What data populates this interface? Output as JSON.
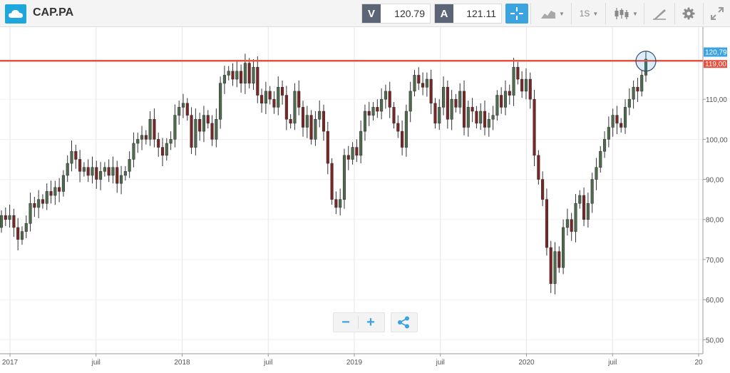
{
  "header": {
    "logo_icon": "cloud-logo-icon",
    "symbol": "CAP.PA",
    "sell": {
      "tag": "V",
      "price": "120.79"
    },
    "buy": {
      "tag": "A",
      "price": "121.11"
    },
    "tools": {
      "crosshair_icon": "crosshair-icon",
      "chart_type_icon": "area-chart-icon",
      "timeframe": "1S",
      "candles_icon": "candlestick-icon",
      "draw_icon": "pencil-ruler-icon",
      "settings_icon": "gear-icon",
      "fullscreen_icon": "expand-icon"
    }
  },
  "controls": {
    "zoom_out": "−",
    "zoom_in": "+",
    "share_icon": "share-icon"
  },
  "colors": {
    "accent": "#3aa3e0",
    "up": "#4e6b4e",
    "down": "#7a2626",
    "line": "#e8503f"
  },
  "chart_data": {
    "type": "candlestick",
    "symbol": "CAP.PA",
    "interval": "1S",
    "y_ticks": [
      "50,00",
      "60,00",
      "70,00",
      "80,00",
      "90,00",
      "100,00",
      "110,00"
    ],
    "ylim": [
      46.5,
      128
    ],
    "x_ticks": [
      {
        "label": "2017",
        "t": 0
      },
      {
        "label": "juil",
        "t": 0.5
      },
      {
        "label": "2018",
        "t": 1
      },
      {
        "label": "juil",
        "t": 1.5
      },
      {
        "label": "2019",
        "t": 2
      },
      {
        "label": "juil",
        "t": 2.5
      },
      {
        "label": "2020",
        "t": 3
      },
      {
        "label": "juil",
        "t": 3.5
      },
      {
        "label": "20",
        "t": 4
      }
    ],
    "current_price": 120.79,
    "current_price_label": "120,79",
    "second_price_label": "119,00",
    "price_line": 119.6,
    "series": [
      [
        78,
        81
      ],
      [
        81,
        80
      ],
      [
        80,
        81
      ],
      [
        81,
        78
      ],
      [
        78,
        75
      ],
      [
        75,
        77
      ],
      [
        77,
        79
      ],
      [
        79,
        84
      ],
      [
        84,
        83
      ],
      [
        83,
        85
      ],
      [
        85,
        84
      ],
      [
        84,
        87
      ],
      [
        87,
        86
      ],
      [
        86,
        88
      ],
      [
        88,
        87
      ],
      [
        87,
        91
      ],
      [
        91,
        94
      ],
      [
        94,
        97
      ],
      [
        97,
        95
      ],
      [
        95,
        92
      ],
      [
        92,
        93
      ],
      [
        93,
        91
      ],
      [
        91,
        93
      ],
      [
        93,
        90
      ],
      [
        90,
        92
      ],
      [
        92,
        93
      ],
      [
        93,
        91
      ],
      [
        91,
        93
      ],
      [
        93,
        89
      ],
      [
        89,
        91
      ],
      [
        91,
        92
      ],
      [
        92,
        95
      ],
      [
        95,
        99
      ],
      [
        99,
        100
      ],
      [
        100,
        101
      ],
      [
        101,
        100
      ],
      [
        100,
        105
      ],
      [
        105,
        100
      ],
      [
        100,
        98
      ],
      [
        98,
        96
      ],
      [
        96,
        99
      ],
      [
        99,
        100
      ],
      [
        100,
        106
      ],
      [
        106,
        108
      ],
      [
        108,
        109
      ],
      [
        109,
        106
      ],
      [
        106,
        98
      ],
      [
        98,
        105
      ],
      [
        105,
        102
      ],
      [
        102,
        106
      ],
      [
        106,
        104
      ],
      [
        104,
        100
      ],
      [
        100,
        105
      ],
      [
        105,
        114
      ],
      [
        114,
        116
      ],
      [
        116,
        117
      ],
      [
        117,
        115
      ],
      [
        115,
        117
      ],
      [
        117,
        114
      ],
      [
        114,
        119
      ],
      [
        119,
        114
      ],
      [
        114,
        118
      ],
      [
        118,
        111
      ],
      [
        111,
        109
      ],
      [
        109,
        112
      ],
      [
        112,
        110
      ],
      [
        110,
        108
      ],
      [
        108,
        113
      ],
      [
        113,
        111
      ],
      [
        111,
        105
      ],
      [
        105,
        104
      ],
      [
        104,
        112
      ],
      [
        112,
        108
      ],
      [
        108,
        103
      ],
      [
        103,
        106
      ],
      [
        106,
        100
      ],
      [
        100,
        105
      ],
      [
        105,
        107
      ],
      [
        107,
        102
      ],
      [
        102,
        94
      ],
      [
        94,
        85
      ],
      [
        85,
        83
      ],
      [
        83,
        85
      ],
      [
        85,
        96
      ],
      [
        96,
        95
      ],
      [
        95,
        98
      ],
      [
        98,
        96
      ],
      [
        96,
        102
      ],
      [
        102,
        107
      ],
      [
        107,
        106
      ],
      [
        106,
        108
      ],
      [
        108,
        107
      ],
      [
        107,
        110
      ],
      [
        110,
        112
      ],
      [
        112,
        108
      ],
      [
        108,
        104
      ],
      [
        104,
        102
      ],
      [
        102,
        98
      ],
      [
        98,
        107
      ],
      [
        107,
        112
      ],
      [
        112,
        116
      ],
      [
        116,
        114
      ],
      [
        114,
        113
      ],
      [
        113,
        115
      ],
      [
        115,
        109
      ],
      [
        109,
        104
      ],
      [
        104,
        108
      ],
      [
        108,
        113
      ],
      [
        113,
        105
      ],
      [
        105,
        110
      ],
      [
        110,
        108
      ],
      [
        108,
        112
      ],
      [
        112,
        103
      ],
      [
        103,
        108
      ],
      [
        108,
        107
      ],
      [
        107,
        104
      ],
      [
        104,
        107
      ],
      [
        107,
        103
      ],
      [
        103,
        105
      ],
      [
        105,
        106
      ],
      [
        106,
        111
      ],
      [
        111,
        108
      ],
      [
        108,
        112
      ],
      [
        112,
        111
      ],
      [
        111,
        118
      ],
      [
        118,
        115
      ],
      [
        115,
        112
      ],
      [
        112,
        115
      ],
      [
        115,
        110
      ],
      [
        110,
        96
      ],
      [
        96,
        90
      ],
      [
        90,
        85
      ],
      [
        85,
        73
      ],
      [
        73,
        64
      ],
      [
        64,
        72
      ],
      [
        72,
        68
      ],
      [
        68,
        78
      ],
      [
        78,
        80
      ],
      [
        80,
        77
      ],
      [
        77,
        84
      ],
      [
        84,
        86
      ],
      [
        86,
        80
      ],
      [
        80,
        84
      ],
      [
        84,
        90
      ],
      [
        90,
        93
      ],
      [
        93,
        97
      ],
      [
        97,
        100
      ],
      [
        100,
        103
      ],
      [
        103,
        106
      ],
      [
        106,
        104
      ],
      [
        104,
        103
      ],
      [
        103,
        108
      ],
      [
        108,
        110
      ],
      [
        110,
        113
      ],
      [
        113,
        112
      ],
      [
        112,
        116
      ],
      [
        116,
        120
      ]
    ]
  }
}
